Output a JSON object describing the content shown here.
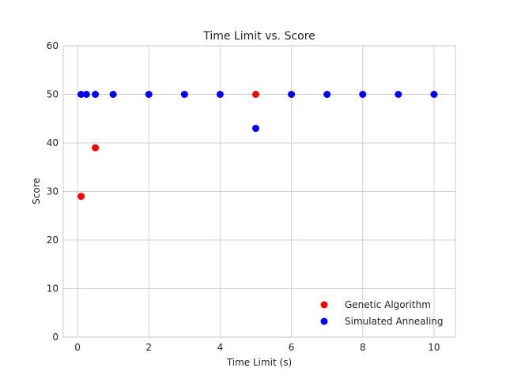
{
  "chart_data": {
    "type": "scatter",
    "title": "Time Limit vs. Score",
    "xlabel": "Time Limit (s)",
    "ylabel": "Score",
    "xlim": [
      -0.4,
      10.6
    ],
    "ylim": [
      0,
      60
    ],
    "xticks": [
      0,
      2,
      4,
      6,
      8,
      10
    ],
    "yticks": [
      0,
      10,
      20,
      30,
      40,
      50,
      60
    ],
    "grid": true,
    "legend_position": "lower-right",
    "series": [
      {
        "name": "Genetic Algorithm",
        "color": "#ff0000",
        "points": [
          {
            "x": 0.1,
            "y": 29
          },
          {
            "x": 0.5,
            "y": 39
          },
          {
            "x": 5,
            "y": 50
          }
        ]
      },
      {
        "name": "Simulated Annealing",
        "color": "#0000ff",
        "points": [
          {
            "x": 0.1,
            "y": 50
          },
          {
            "x": 0.25,
            "y": 50
          },
          {
            "x": 0.5,
            "y": 50
          },
          {
            "x": 1,
            "y": 50
          },
          {
            "x": 2,
            "y": 50
          },
          {
            "x": 3,
            "y": 50
          },
          {
            "x": 4,
            "y": 50
          },
          {
            "x": 5,
            "y": 43
          },
          {
            "x": 6,
            "y": 50
          },
          {
            "x": 7,
            "y": 50
          },
          {
            "x": 8,
            "y": 50
          },
          {
            "x": 9,
            "y": 50
          },
          {
            "x": 10,
            "y": 50
          }
        ]
      }
    ]
  }
}
